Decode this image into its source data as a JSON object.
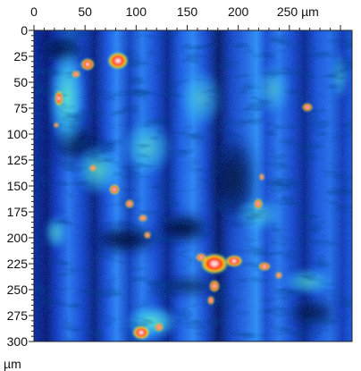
{
  "image": {
    "subject": "confocal microscopy intensity map",
    "colormap": [
      "#000a32",
      "#0a2aa8",
      "#1b5eea",
      "#2fa3ff",
      "#49d6e8",
      "#53e893",
      "#f2e25b",
      "#ffb300",
      "#ff2a00",
      "#ffffff"
    ]
  },
  "axes": {
    "top": {
      "unit": "µm",
      "ticks": [
        {
          "value": 0,
          "label": "0"
        },
        {
          "value": 50,
          "label": "50"
        },
        {
          "value": 100,
          "label": "100"
        },
        {
          "value": 150,
          "label": "150"
        },
        {
          "value": 200,
          "label": "200"
        },
        {
          "value": 250,
          "label": "250 µm"
        }
      ],
      "range": [
        0,
        300
      ]
    },
    "left": {
      "unit": "µm",
      "ticks": [
        {
          "value": 0,
          "label": "0"
        },
        {
          "value": 25,
          "label": "25"
        },
        {
          "value": 50,
          "label": "50"
        },
        {
          "value": 75,
          "label": "75"
        },
        {
          "value": 100,
          "label": "100"
        },
        {
          "value": 125,
          "label": "125"
        },
        {
          "value": 150,
          "label": "150"
        },
        {
          "value": 175,
          "label": "175"
        },
        {
          "value": 200,
          "label": "200"
        },
        {
          "value": 225,
          "label": "225"
        },
        {
          "value": 250,
          "label": "250"
        },
        {
          "value": 275,
          "label": "275"
        },
        {
          "value": 300,
          "label": "300"
        }
      ],
      "range": [
        0,
        300
      ],
      "bottom_unit": "µm"
    }
  }
}
